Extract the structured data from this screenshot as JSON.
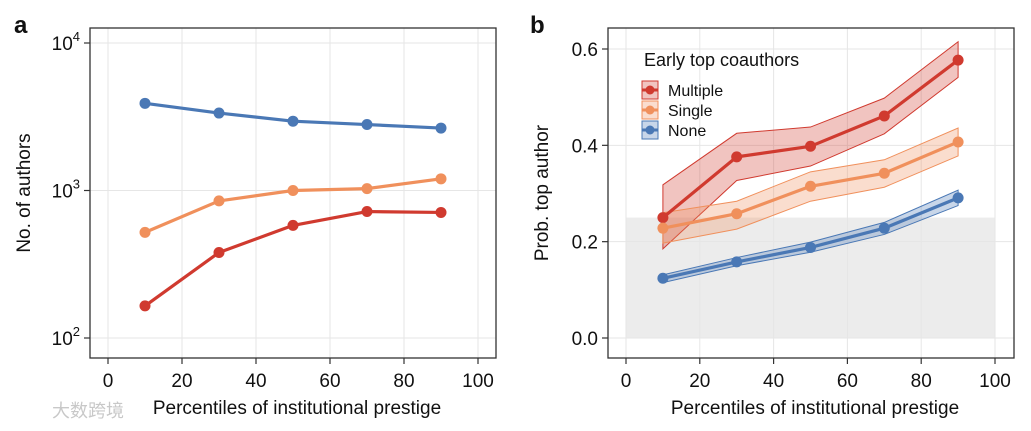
{
  "chart_data": [
    {
      "panel_label": "a",
      "type": "line",
      "xlabel": "Percentiles of institutional prestige",
      "ylabel": "No. of authors",
      "yscale": "log",
      "xlim": [
        -5,
        105
      ],
      "ylim": [
        80,
        13000
      ],
      "xticks": [
        0,
        20,
        40,
        60,
        80,
        100
      ],
      "xtick_labels": [
        "0",
        "20",
        "40",
        "60",
        "80",
        "100"
      ],
      "yticks": [
        100,
        1000,
        10000
      ],
      "ytick_labels": [
        {
          "base": "10",
          "exp": "2"
        },
        {
          "base": "10",
          "exp": "3"
        },
        {
          "base": "10",
          "exp": "4"
        }
      ],
      "grid": true,
      "x": [
        10,
        30,
        50,
        70,
        90
      ],
      "series": [
        {
          "name": "None",
          "color": "#4a78b5",
          "values": [
            3900,
            3350,
            2950,
            2800,
            2650
          ]
        },
        {
          "name": "Single",
          "color": "#f0905c",
          "values": [
            520,
            850,
            1000,
            1030,
            1200
          ]
        },
        {
          "name": "Multiple",
          "color": "#d03a2f",
          "values": [
            165,
            380,
            580,
            720,
            710
          ]
        }
      ]
    },
    {
      "panel_label": "b",
      "type": "line",
      "xlabel": "Percentiles of institutional prestige",
      "ylabel": "Prob. top author",
      "xlim": [
        -5,
        105
      ],
      "ylim": [
        -0.05,
        0.65
      ],
      "xticks": [
        0,
        20,
        40,
        60,
        80,
        100
      ],
      "xtick_labels": [
        "0",
        "20",
        "40",
        "60",
        "80",
        "100"
      ],
      "yticks": [
        0,
        0.2,
        0.4,
        0.6
      ],
      "ytick_labels": [
        "0.0",
        "0.2",
        "0.4",
        "0.6"
      ],
      "grid": true,
      "shaded_region": {
        "x": [
          0,
          100
        ],
        "y": [
          0,
          0.25
        ],
        "color": "#ececec"
      },
      "legend": {
        "title": "Early top coauthors",
        "placement": "top-left"
      },
      "x": [
        10,
        30,
        50,
        70,
        90
      ],
      "series": [
        {
          "name": "Multiple",
          "color": "#d03a2f",
          "values": [
            0.25,
            0.376,
            0.398,
            0.461,
            0.577
          ],
          "lower": [
            0.185,
            0.327,
            0.357,
            0.424,
            0.541
          ],
          "upper": [
            0.318,
            0.425,
            0.438,
            0.498,
            0.615
          ]
        },
        {
          "name": "Single",
          "color": "#f0905c",
          "values": [
            0.228,
            0.258,
            0.315,
            0.342,
            0.407
          ],
          "lower": [
            0.197,
            0.226,
            0.284,
            0.313,
            0.378
          ],
          "upper": [
            0.26,
            0.284,
            0.345,
            0.37,
            0.436
          ]
        },
        {
          "name": "None",
          "color": "#4a78b5",
          "values": [
            0.124,
            0.158,
            0.188,
            0.228,
            0.291
          ],
          "lower": [
            0.115,
            0.15,
            0.178,
            0.215,
            0.275
          ],
          "upper": [
            0.131,
            0.167,
            0.199,
            0.24,
            0.307
          ]
        }
      ]
    }
  ],
  "watermark": "大数跨境"
}
